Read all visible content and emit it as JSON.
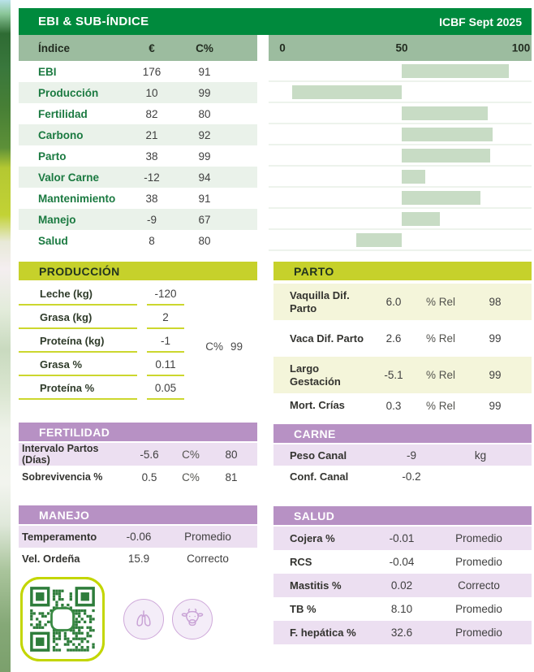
{
  "title_bar": {
    "title": "EBI & SUB-ÍNDICE",
    "badge": "ICBF Sept 2025"
  },
  "index_table": {
    "col_label": "Índice",
    "col_eur": "€",
    "col_c": "C%",
    "rows": [
      {
        "label": "EBI",
        "eur": "176",
        "c": "91"
      },
      {
        "label": "Producción",
        "eur": "10",
        "c": "99"
      },
      {
        "label": "Fertilidad",
        "eur": "82",
        "c": "80"
      },
      {
        "label": "Carbono",
        "eur": "21",
        "c": "92"
      },
      {
        "label": "Parto",
        "eur": "38",
        "c": "99"
      },
      {
        "label": "Valor Carne",
        "eur": "-12",
        "c": "94"
      },
      {
        "label": "Mantenimiento",
        "eur": "38",
        "c": "91"
      },
      {
        "label": "Manejo",
        "eur": "-9",
        "c": "67"
      },
      {
        "label": "Salud",
        "eur": "8",
        "c": "80"
      }
    ]
  },
  "chart_data": {
    "type": "bar",
    "orientation": "horizontal",
    "xlim": [
      0,
      100
    ],
    "baseline": 50,
    "tick_labels": [
      "0",
      "50",
      "100"
    ],
    "categories": [
      "EBI",
      "Producción",
      "Fertilidad",
      "Carbono",
      "Parto",
      "Valor Carne",
      "Mantenimiento",
      "Manejo",
      "Salud"
    ],
    "bars": [
      {
        "start": 50,
        "end": 95
      },
      {
        "start": 4,
        "end": 50
      },
      {
        "start": 50,
        "end": 86
      },
      {
        "start": 50,
        "end": 88
      },
      {
        "start": 50,
        "end": 87
      },
      {
        "start": 50,
        "end": 60
      },
      {
        "start": 50,
        "end": 83
      },
      {
        "start": 50,
        "end": 66
      },
      {
        "start": 31,
        "end": 50
      }
    ],
    "bar_color": "#c8dcc5"
  },
  "produccion": {
    "title": "PRODUCCIÓN",
    "c_label": "C%",
    "c_value": "99",
    "rows": [
      {
        "label": "Leche (kg)",
        "value": "-120"
      },
      {
        "label": "Grasa (kg)",
        "value": "2"
      },
      {
        "label": "Proteína (kg)",
        "value": "-1"
      },
      {
        "label": "Grasa %",
        "value": "0.11"
      },
      {
        "label": "Proteína %",
        "value": "0.05"
      }
    ]
  },
  "parto": {
    "title": "PARTO",
    "rows": [
      {
        "label": "Vaquilla Dif. Parto",
        "value": "6.0",
        "unit": "% Rel",
        "rel": "98"
      },
      {
        "label": "Vaca Dif. Parto",
        "value": "2.6",
        "unit": "% Rel",
        "rel": "99"
      },
      {
        "label": "Largo Gestación",
        "value": "-5.1",
        "unit": "% Rel",
        "rel": "99"
      },
      {
        "label": "Mort. Crías",
        "value": "0.3",
        "unit": "% Rel",
        "rel": "99"
      }
    ]
  },
  "fertilidad": {
    "title": "FERTILIDAD",
    "rows": [
      {
        "label": "Intervalo Partos (Días)",
        "value": "-5.6",
        "unit": "C%",
        "rel": "80"
      },
      {
        "label": "Sobrevivencia %",
        "value": "0.5",
        "unit": "C%",
        "rel": "81"
      }
    ]
  },
  "carne": {
    "title": "CARNE",
    "rows": [
      {
        "label": "Peso Canal",
        "value": "-9",
        "unit": "kg"
      },
      {
        "label": "Conf. Canal",
        "value": "-0.2",
        "unit": ""
      }
    ]
  },
  "manejo": {
    "title": "MANEJO",
    "rows": [
      {
        "label": "Temperamento",
        "value": "-0.06",
        "status": "Promedio"
      },
      {
        "label": "Vel. Ordeña",
        "value": "15.9",
        "status": "Correcto"
      }
    ]
  },
  "salud": {
    "title": "SALUD",
    "rows": [
      {
        "label": "Cojera %",
        "value": "-0.01",
        "status": "Promedio"
      },
      {
        "label": "RCS",
        "value": "-0.04",
        "status": "Promedio"
      },
      {
        "label": "Mastitis %",
        "value": "0.02",
        "status": "Correcto"
      },
      {
        "label": "TB %",
        "value": "8.10",
        "status": "Promedio"
      },
      {
        "label": "F. hepática %",
        "value": "32.6",
        "status": "Promedio"
      }
    ]
  }
}
